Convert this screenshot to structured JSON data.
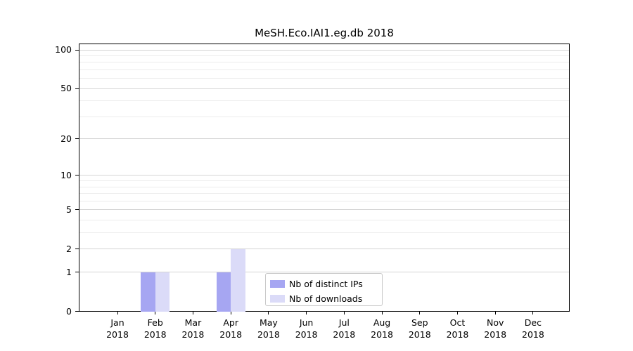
{
  "chart_data": {
    "type": "bar",
    "title": "MeSH.Eco.IAI1.eg.db 2018",
    "xlabel": "",
    "ylabel": "",
    "year_label": "2018",
    "categories": [
      "Jan",
      "Feb",
      "Mar",
      "Apr",
      "May",
      "Jun",
      "Jul",
      "Aug",
      "Sep",
      "Oct",
      "Nov",
      "Dec"
    ],
    "series": [
      {
        "name": "Nb of distinct IPs",
        "color": "#a6a6f2",
        "values": [
          0,
          1,
          0,
          1,
          0,
          0,
          0,
          0,
          0,
          0,
          0,
          0
        ]
      },
      {
        "name": "Nb of downloads",
        "color": "#dbdbf8",
        "values": [
          0,
          1,
          0,
          2,
          0,
          0,
          0,
          0,
          0,
          0,
          0,
          0
        ]
      }
    ],
    "yscale": "log1p",
    "yticks": [
      0,
      1,
      2,
      5,
      10,
      20,
      50,
      100
    ],
    "yticks_minor": [
      3,
      4,
      6,
      7,
      8,
      9,
      30,
      40,
      60,
      70,
      80,
      90
    ],
    "ylim": [
      0,
      112
    ],
    "grid": true,
    "legend_position": "inside lower center"
  },
  "colors": {
    "axis": "#000000",
    "grid_major": "#d4d4d4",
    "grid_minor": "#ececec",
    "background": "#ffffff",
    "legend_border": "#c9c9c9"
  }
}
